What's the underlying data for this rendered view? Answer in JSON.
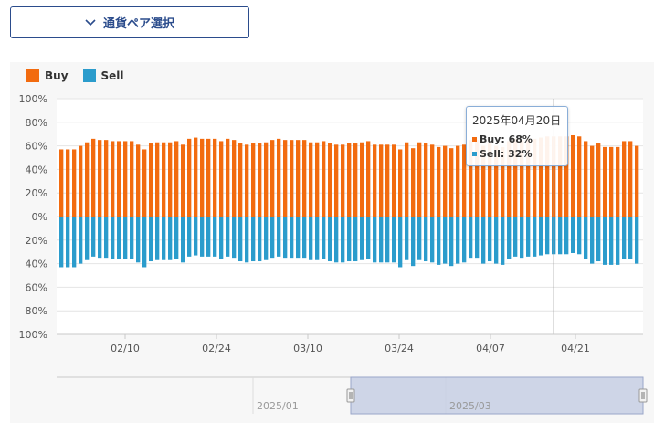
{
  "selector": {
    "label": "通貨ペア選択",
    "icon": "chevron-down-icon"
  },
  "colors": {
    "buy": "#f26b0f",
    "sell": "#2b9ccc",
    "accent": "#2b4c8c",
    "navigator_mask": "#c7cfe4"
  },
  "legend": [
    {
      "label": "Buy"
    },
    {
      "label": "Sell"
    }
  ],
  "tooltip": {
    "date": "2025年04月20日",
    "buy": "Buy: 68%",
    "sell": "Sell: 32%"
  },
  "navigator": {
    "labels": [
      "2025/01",
      "2025/03"
    ]
  },
  "chart_data": {
    "type": "bar",
    "stacking": "diverging",
    "legend_position": "top-left",
    "grid": true,
    "yticks": [
      "100%",
      "80%",
      "60%",
      "40%",
      "20%",
      "0%",
      "20%",
      "40%",
      "60%",
      "80%",
      "100%"
    ],
    "ylim": [
      -100,
      100
    ],
    "xticks": [
      "02/10",
      "02/24",
      "03/10",
      "03/24",
      "04/07",
      "04/21"
    ],
    "series": [
      {
        "name": "Buy",
        "values": [
          57,
          57,
          57,
          60,
          63,
          66,
          65,
          65,
          64,
          64,
          64,
          64,
          61,
          57,
          62,
          63,
          63,
          63,
          64,
          61,
          66,
          67,
          66,
          66,
          66,
          64,
          66,
          65,
          62,
          61,
          62,
          62,
          63,
          65,
          66,
          65,
          65,
          65,
          65,
          63,
          63,
          64,
          62,
          61,
          61,
          62,
          62,
          63,
          64,
          61,
          61,
          61,
          61,
          57,
          63,
          58,
          63,
          62,
          61,
          59,
          60,
          58,
          60,
          61,
          65,
          65,
          60,
          62,
          60,
          59,
          64,
          66,
          65,
          66,
          66,
          67,
          68,
          68,
          68,
          68,
          69,
          68,
          64,
          60,
          62,
          59,
          59,
          59,
          64,
          64,
          60
        ]
      },
      {
        "name": "Sell",
        "values": [
          43,
          43,
          43,
          40,
          37,
          34,
          35,
          35,
          36,
          36,
          36,
          36,
          39,
          43,
          38,
          37,
          37,
          37,
          36,
          39,
          34,
          33,
          34,
          34,
          34,
          36,
          34,
          35,
          38,
          39,
          38,
          38,
          37,
          35,
          34,
          35,
          35,
          35,
          35,
          37,
          37,
          36,
          38,
          39,
          39,
          38,
          38,
          37,
          36,
          39,
          39,
          39,
          39,
          43,
          37,
          42,
          37,
          38,
          39,
          41,
          40,
          42,
          40,
          39,
          35,
          35,
          40,
          38,
          40,
          41,
          36,
          34,
          35,
          34,
          34,
          33,
          32,
          32,
          32,
          32,
          31,
          32,
          36,
          40,
          38,
          41,
          41,
          41,
          36,
          36,
          40
        ]
      }
    ],
    "highlighted": {
      "date": "2025年04月20日",
      "buy": 68,
      "sell": 32
    }
  }
}
